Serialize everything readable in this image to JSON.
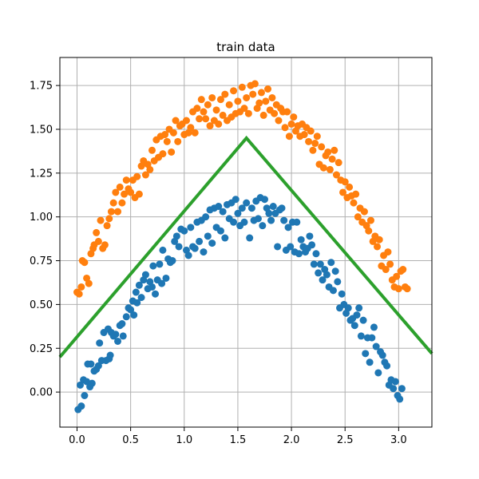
{
  "chart_data": {
    "type": "scatter",
    "title": "train data",
    "xlabel": "",
    "ylabel": "",
    "xlim": [
      -0.16,
      3.31
    ],
    "ylim": [
      -0.2,
      1.91
    ],
    "grid": true,
    "legend": "none",
    "x_ticks": [
      "0.0",
      "0.5",
      "1.0",
      "1.5",
      "2.0",
      "2.5",
      "3.0"
    ],
    "y_ticks": [
      "0.00",
      "0.25",
      "0.50",
      "0.75",
      "1.00",
      "1.25",
      "1.50",
      "1.75"
    ],
    "x_tick_values": [
      0.0,
      0.5,
      1.0,
      1.5,
      2.0,
      2.5,
      3.0
    ],
    "y_tick_values": [
      0.0,
      0.25,
      0.5,
      0.75,
      1.0,
      1.25,
      1.5,
      1.75
    ],
    "series": [
      {
        "color": "#1f77b4",
        "marker": "circle",
        "points": [
          [
            0.01,
            -0.1
          ],
          [
            0.04,
            -0.08
          ],
          [
            0.03,
            0.04
          ],
          [
            0.06,
            0.07
          ],
          [
            0.07,
            -0.02
          ],
          [
            0.09,
            0.06
          ],
          [
            0.1,
            0.16
          ],
          [
            0.12,
            0.03
          ],
          [
            0.13,
            0.16
          ],
          [
            0.14,
            0.05
          ],
          [
            0.16,
            0.12
          ],
          [
            0.18,
            0.13
          ],
          [
            0.2,
            0.15
          ],
          [
            0.21,
            0.28
          ],
          [
            0.23,
            0.18
          ],
          [
            0.25,
            0.34
          ],
          [
            0.27,
            0.18
          ],
          [
            0.29,
            0.36
          ],
          [
            0.3,
            0.19
          ],
          [
            0.31,
            0.21
          ],
          [
            0.32,
            0.34
          ],
          [
            0.34,
            0.32
          ],
          [
            0.36,
            0.33
          ],
          [
            0.38,
            0.29
          ],
          [
            0.4,
            0.38
          ],
          [
            0.42,
            0.39
          ],
          [
            0.43,
            0.32
          ],
          [
            0.46,
            0.43
          ],
          [
            0.48,
            0.48
          ],
          [
            0.5,
            0.47
          ],
          [
            0.52,
            0.52
          ],
          [
            0.53,
            0.44
          ],
          [
            0.55,
            0.57
          ],
          [
            0.56,
            0.51
          ],
          [
            0.58,
            0.61
          ],
          [
            0.6,
            0.54
          ],
          [
            0.62,
            0.64
          ],
          [
            0.64,
            0.67
          ],
          [
            0.66,
            0.59
          ],
          [
            0.68,
            0.63
          ],
          [
            0.7,
            0.6
          ],
          [
            0.71,
            0.72
          ],
          [
            0.73,
            0.56
          ],
          [
            0.75,
            0.64
          ],
          [
            0.77,
            0.73
          ],
          [
            0.79,
            0.62
          ],
          [
            0.8,
            0.81
          ],
          [
            0.83,
            0.65
          ],
          [
            0.85,
            0.76
          ],
          [
            0.87,
            0.74
          ],
          [
            0.89,
            0.75
          ],
          [
            0.91,
            0.86
          ],
          [
            0.93,
            0.89
          ],
          [
            0.95,
            0.83
          ],
          [
            0.97,
            0.93
          ],
          [
            1.0,
            0.92
          ],
          [
            1.02,
            0.81
          ],
          [
            1.04,
            0.78
          ],
          [
            1.06,
            0.94
          ],
          [
            1.08,
            0.83
          ],
          [
            1.1,
            0.82
          ],
          [
            1.12,
            0.97
          ],
          [
            1.14,
            0.86
          ],
          [
            1.16,
            0.98
          ],
          [
            1.18,
            0.8
          ],
          [
            1.2,
            1.0
          ],
          [
            1.22,
            0.89
          ],
          [
            1.24,
            1.04
          ],
          [
            1.26,
            0.85
          ],
          [
            1.28,
            1.05
          ],
          [
            1.3,
            0.94
          ],
          [
            1.32,
            1.06
          ],
          [
            1.34,
            0.92
          ],
          [
            1.36,
            1.03
          ],
          [
            1.38,
            0.88
          ],
          [
            1.4,
            1.07
          ],
          [
            1.42,
            0.99
          ],
          [
            1.44,
            1.08
          ],
          [
            1.46,
            0.97
          ],
          [
            1.48,
            1.1
          ],
          [
            1.5,
            1.02
          ],
          [
            1.52,
            0.95
          ],
          [
            1.54,
            1.05
          ],
          [
            1.56,
            0.97
          ],
          [
            1.58,
            1.08
          ],
          [
            1.61,
            0.88
          ],
          [
            1.63,
            1.05
          ],
          [
            1.65,
            0.98
          ],
          [
            1.67,
            1.09
          ],
          [
            1.69,
            0.99
          ],
          [
            1.71,
            1.11
          ],
          [
            1.73,
            0.95
          ],
          [
            1.75,
            1.1
          ],
          [
            1.77,
            1.05
          ],
          [
            1.79,
            1.02
          ],
          [
            1.81,
            0.98
          ],
          [
            1.83,
            1.06
          ],
          [
            1.85,
            1.02
          ],
          [
            1.87,
            0.83
          ],
          [
            1.89,
            1.04
          ],
          [
            1.91,
            1.05
          ],
          [
            1.93,
            0.98
          ],
          [
            1.95,
            0.81
          ],
          [
            1.97,
            0.94
          ],
          [
            1.99,
            0.83
          ],
          [
            2.01,
            0.97
          ],
          [
            2.03,
            0.8
          ],
          [
            2.05,
            0.97
          ],
          [
            2.07,
            0.79
          ],
          [
            2.09,
            0.87
          ],
          [
            2.11,
            0.83
          ],
          [
            2.13,
            0.8
          ],
          [
            2.15,
            0.82
          ],
          [
            2.17,
            0.89
          ],
          [
            2.19,
            0.84
          ],
          [
            2.21,
            0.73
          ],
          [
            2.23,
            0.79
          ],
          [
            2.25,
            0.68
          ],
          [
            2.27,
            0.73
          ],
          [
            2.29,
            0.64
          ],
          [
            2.31,
            0.7
          ],
          [
            2.33,
            0.67
          ],
          [
            2.35,
            0.6
          ],
          [
            2.37,
            0.74
          ],
          [
            2.39,
            0.58
          ],
          [
            2.41,
            0.69
          ],
          [
            2.43,
            0.63
          ],
          [
            2.45,
            0.48
          ],
          [
            2.47,
            0.56
          ],
          [
            2.49,
            0.5
          ],
          [
            2.51,
            0.45
          ],
          [
            2.53,
            0.48
          ],
          [
            2.55,
            0.41
          ],
          [
            2.57,
            0.42
          ],
          [
            2.59,
            0.38
          ],
          [
            2.61,
            0.44
          ],
          [
            2.63,
            0.48
          ],
          [
            2.65,
            0.32
          ],
          [
            2.67,
            0.41
          ],
          [
            2.69,
            0.22
          ],
          [
            2.71,
            0.31
          ],
          [
            2.73,
            0.17
          ],
          [
            2.75,
            0.31
          ],
          [
            2.77,
            0.37
          ],
          [
            2.79,
            0.26
          ],
          [
            2.81,
            0.11
          ],
          [
            2.83,
            0.23
          ],
          [
            2.85,
            0.21
          ],
          [
            2.87,
            0.17
          ],
          [
            2.89,
            0.15
          ],
          [
            2.91,
            0.04
          ],
          [
            2.93,
            0.07
          ],
          [
            2.95,
            0.02
          ],
          [
            2.97,
            0.06
          ],
          [
            2.99,
            -0.02
          ],
          [
            3.01,
            -0.04
          ],
          [
            3.03,
            0.02
          ]
        ]
      },
      {
        "color": "#ff7f0e",
        "marker": "circle",
        "points": [
          [
            0.0,
            0.57
          ],
          [
            0.02,
            0.56
          ],
          [
            0.04,
            0.6
          ],
          [
            0.05,
            0.75
          ],
          [
            0.07,
            0.74
          ],
          [
            0.09,
            0.65
          ],
          [
            0.11,
            0.62
          ],
          [
            0.13,
            0.79
          ],
          [
            0.15,
            0.82
          ],
          [
            0.16,
            0.84
          ],
          [
            0.18,
            0.91
          ],
          [
            0.2,
            0.86
          ],
          [
            0.22,
            0.98
          ],
          [
            0.24,
            0.82
          ],
          [
            0.26,
            0.84
          ],
          [
            0.28,
            0.95
          ],
          [
            0.3,
            0.99
          ],
          [
            0.32,
            1.03
          ],
          [
            0.34,
            1.08
          ],
          [
            0.36,
            1.14
          ],
          [
            0.38,
            1.03
          ],
          [
            0.4,
            1.17
          ],
          [
            0.42,
            1.08
          ],
          [
            0.44,
            1.13
          ],
          [
            0.46,
            1.21
          ],
          [
            0.48,
            1.16
          ],
          [
            0.5,
            1.14
          ],
          [
            0.52,
            1.21
          ],
          [
            0.54,
            1.11
          ],
          [
            0.56,
            1.23
          ],
          [
            0.58,
            1.13
          ],
          [
            0.6,
            1.29
          ],
          [
            0.62,
            1.32
          ],
          [
            0.64,
            1.24
          ],
          [
            0.66,
            1.3
          ],
          [
            0.68,
            1.27
          ],
          [
            0.7,
            1.38
          ],
          [
            0.72,
            1.32
          ],
          [
            0.74,
            1.44
          ],
          [
            0.76,
            1.34
          ],
          [
            0.78,
            1.46
          ],
          [
            0.8,
            1.36
          ],
          [
            0.82,
            1.47
          ],
          [
            0.84,
            1.43
          ],
          [
            0.86,
            1.5
          ],
          [
            0.88,
            1.37
          ],
          [
            0.9,
            1.48
          ],
          [
            0.92,
            1.55
          ],
          [
            0.94,
            1.43
          ],
          [
            0.96,
            1.52
          ],
          [
            0.98,
            1.53
          ],
          [
            1.0,
            1.47
          ],
          [
            1.02,
            1.55
          ],
          [
            1.04,
            1.48
          ],
          [
            1.06,
            1.51
          ],
          [
            1.08,
            1.6
          ],
          [
            1.1,
            1.48
          ],
          [
            1.12,
            1.62
          ],
          [
            1.14,
            1.56
          ],
          [
            1.16,
            1.67
          ],
          [
            1.18,
            1.6
          ],
          [
            1.2,
            1.56
          ],
          [
            1.22,
            1.64
          ],
          [
            1.24,
            1.52
          ],
          [
            1.26,
            1.68
          ],
          [
            1.28,
            1.55
          ],
          [
            1.3,
            1.61
          ],
          [
            1.32,
            1.53
          ],
          [
            1.34,
            1.67
          ],
          [
            1.36,
            1.58
          ],
          [
            1.38,
            1.7
          ],
          [
            1.4,
            1.55
          ],
          [
            1.42,
            1.64
          ],
          [
            1.44,
            1.57
          ],
          [
            1.46,
            1.72
          ],
          [
            1.48,
            1.59
          ],
          [
            1.5,
            1.66
          ],
          [
            1.52,
            1.6
          ],
          [
            1.54,
            1.74
          ],
          [
            1.56,
            1.62
          ],
          [
            1.58,
            1.68
          ],
          [
            1.6,
            1.59
          ],
          [
            1.62,
            1.75
          ],
          [
            1.64,
            1.7
          ],
          [
            1.66,
            1.76
          ],
          [
            1.68,
            1.62
          ],
          [
            1.7,
            1.65
          ],
          [
            1.72,
            1.71
          ],
          [
            1.74,
            1.58
          ],
          [
            1.76,
            1.66
          ],
          [
            1.78,
            1.73
          ],
          [
            1.8,
            1.61
          ],
          [
            1.82,
            1.68
          ],
          [
            1.84,
            1.59
          ],
          [
            1.86,
            1.64
          ],
          [
            1.88,
            1.55
          ],
          [
            1.9,
            1.62
          ],
          [
            1.92,
            1.6
          ],
          [
            1.94,
            1.51
          ],
          [
            1.96,
            1.6
          ],
          [
            1.98,
            1.46
          ],
          [
            2.0,
            1.53
          ],
          [
            2.02,
            1.57
          ],
          [
            2.04,
            1.49
          ],
          [
            2.06,
            1.52
          ],
          [
            2.08,
            1.46
          ],
          [
            2.1,
            1.53
          ],
          [
            2.12,
            1.47
          ],
          [
            2.14,
            1.51
          ],
          [
            2.16,
            1.43
          ],
          [
            2.18,
            1.49
          ],
          [
            2.2,
            1.38
          ],
          [
            2.22,
            1.42
          ],
          [
            2.24,
            1.46
          ],
          [
            2.26,
            1.3
          ],
          [
            2.28,
            1.4
          ],
          [
            2.3,
            1.28
          ],
          [
            2.32,
            1.35
          ],
          [
            2.34,
            1.37
          ],
          [
            2.36,
            1.27
          ],
          [
            2.38,
            1.33
          ],
          [
            2.4,
            1.38
          ],
          [
            2.42,
            1.24
          ],
          [
            2.44,
            1.31
          ],
          [
            2.46,
            1.21
          ],
          [
            2.48,
            1.14
          ],
          [
            2.5,
            1.2
          ],
          [
            2.52,
            1.11
          ],
          [
            2.54,
            1.17
          ],
          [
            2.56,
            1.12
          ],
          [
            2.58,
            1.08
          ],
          [
            2.6,
            1.13
          ],
          [
            2.62,
            1.0
          ],
          [
            2.64,
            1.05
          ],
          [
            2.66,
            0.97
          ],
          [
            2.68,
            1.03
          ],
          [
            2.7,
            0.95
          ],
          [
            2.72,
            0.92
          ],
          [
            2.74,
            0.98
          ],
          [
            2.76,
            0.86
          ],
          [
            2.78,
            0.89
          ],
          [
            2.8,
            0.83
          ],
          [
            2.82,
            0.87
          ],
          [
            2.84,
            0.72
          ],
          [
            2.86,
            0.78
          ],
          [
            2.88,
            0.7
          ],
          [
            2.9,
            0.8
          ],
          [
            2.92,
            0.73
          ],
          [
            2.94,
            0.64
          ],
          [
            2.96,
            0.6
          ],
          [
            2.98,
            0.66
          ],
          [
            3.0,
            0.59
          ],
          [
            3.02,
            0.69
          ],
          [
            3.04,
            0.7
          ],
          [
            3.06,
            0.6
          ],
          [
            3.08,
            0.59
          ]
        ]
      },
      {
        "color": "#2ca02c",
        "marker": "line",
        "line_points": [
          [
            -0.16,
            0.2
          ],
          [
            1.58,
            1.45
          ],
          [
            3.31,
            0.22
          ]
        ]
      }
    ]
  }
}
